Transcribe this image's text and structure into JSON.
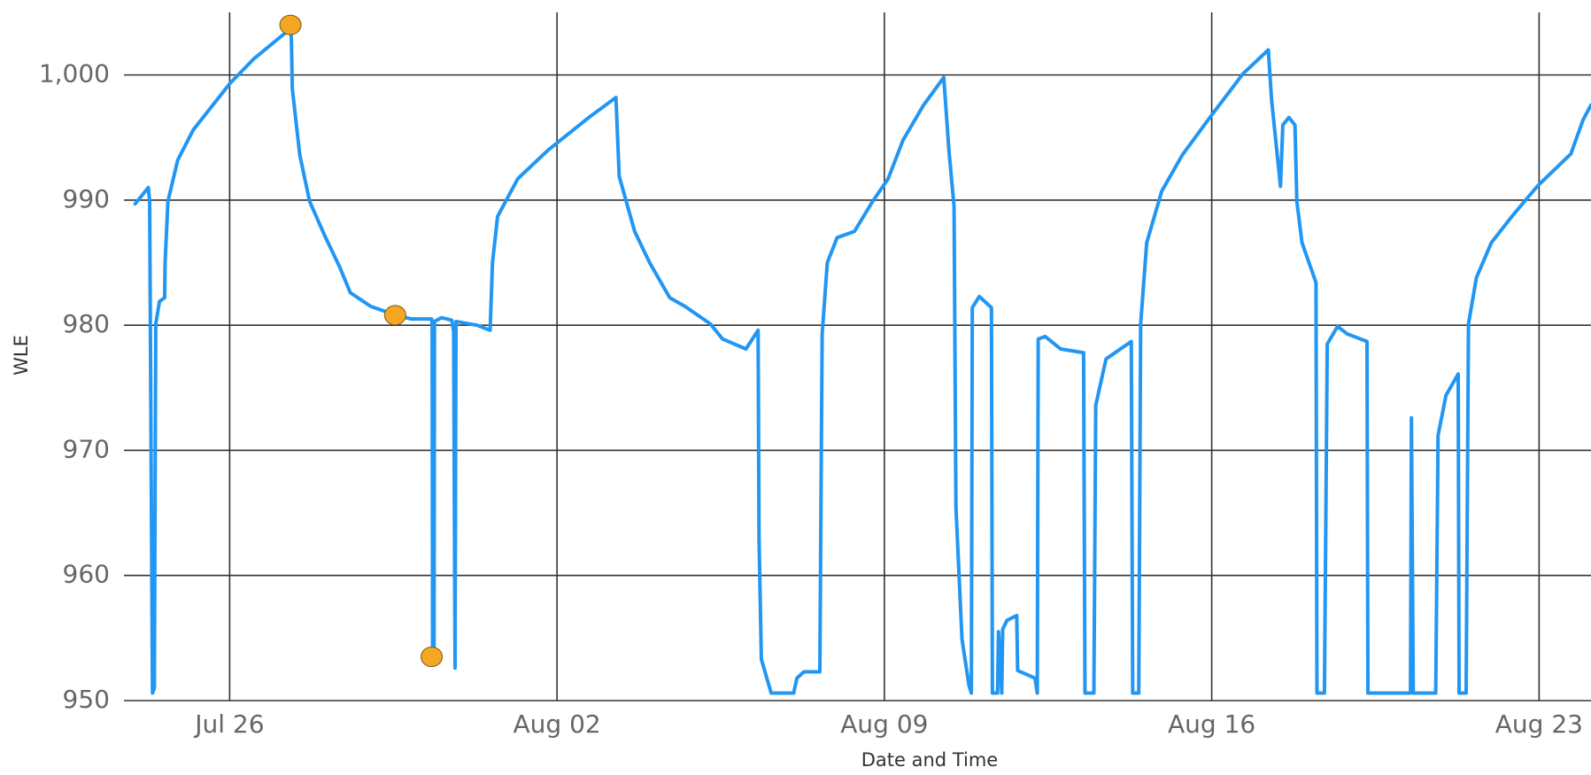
{
  "chart_data": {
    "type": "line",
    "x_label": "Date and Time",
    "y_label": "WLE",
    "xlim": [
      -2.26,
      29.11
    ],
    "ylim": [
      950,
      1005
    ],
    "xticks": [
      {
        "value": 0,
        "label": "Jul 26"
      },
      {
        "value": 7,
        "label": "Aug 02"
      },
      {
        "value": 14,
        "label": "Aug 09"
      },
      {
        "value": 21,
        "label": "Aug 16"
      },
      {
        "value": 28,
        "label": "Aug 23"
      }
    ],
    "yticks": [
      950,
      960,
      970,
      980,
      990,
      {
        "value": 1000,
        "label": "1,000"
      }
    ],
    "grid": true,
    "x": [
      -2.02,
      -1.74,
      -1.71,
      -1.68,
      -1.65,
      -1.61,
      -1.58,
      -1.5,
      -1.39,
      -1.38,
      -1.32,
      -1.11,
      -0.78,
      0,
      0.52,
      1.3,
      1.32,
      1.34,
      1.5,
      1.71,
      2.04,
      2.36,
      2.58,
      3.02,
      3.56,
      3.88,
      4.32,
      4.33,
      4.34,
      4.37,
      4.38,
      4.53,
      4.75,
      4.79,
      4.82,
      4.84,
      5.29,
      5.57,
      5.62,
      5.73,
      6.16,
      6.81,
      7.68,
      8.26,
      8.33,
      8.66,
      8.98,
      9.41,
      9.74,
      10.28,
      10.54,
      11.04,
      11.3,
      11.32,
      11.37,
      11.58,
      12.06,
      12.13,
      12.28,
      12.62,
      12.67,
      12.78,
      12.99,
      13.36,
      13.75,
      14.08,
      14.4,
      14.84,
      15.27,
      15.38,
      15.49,
      15.53,
      15.66,
      15.81,
      15.86,
      15.88,
      16.03,
      16.29,
      16.31,
      16.42,
      16.44,
      16.51,
      16.53,
      16.62,
      16.83,
      16.85,
      17.22,
      17.27,
      17.29,
      17.44,
      17.77,
      18.26,
      18.29,
      18.48,
      18.52,
      18.74,
      19.28,
      19.31,
      19.44,
      19.48,
      19.61,
      19.93,
      20.37,
      21,
      21.67,
      22.21,
      22.28,
      22.47,
      22.52,
      22.65,
      22.78,
      22.82,
      22.93,
      23.23,
      23.25,
      23.41,
      23.47,
      23.69,
      23.9,
      24.32,
      24.34,
      25.25,
      25.27,
      25.31,
      25.79,
      25.84,
      26.01,
      26.27,
      26.29,
      26.44,
      26.49,
      26.66,
      26.98,
      27.42,
      27.96,
      28.68,
      28.94,
      29.11
    ],
    "series": [
      {
        "color": "#2196f3",
        "values": [
          989.7,
          991,
          989.9,
          970,
          950.6,
          951,
          980.1,
          981.9,
          982.2,
          985,
          989.9,
          993.2,
          995.6,
          999.3,
          1001.3,
          1003.7,
          1002.9,
          998.9,
          993.6,
          989.9,
          987.1,
          984.6,
          982.6,
          981.5,
          980.8,
          980.5,
          980.5,
          980,
          953.3,
          953.3,
          980.3,
          980.6,
          980.4,
          979.5,
          952.6,
          980.3,
          980,
          979.6,
          985,
          988.7,
          991.7,
          994,
          996.6,
          998.2,
          991.9,
          987.5,
          985,
          982.2,
          981.5,
          980.1,
          978.9,
          978.1,
          979.6,
          963,
          953.3,
          950.6,
          950.6,
          951.8,
          952.3,
          952.3,
          979.3,
          985,
          987,
          987.5,
          989.9,
          991.7,
          994.8,
          997.6,
          999.8,
          994,
          989.5,
          965.5,
          954.9,
          951.2,
          950.6,
          981.4,
          982.3,
          981.4,
          950.6,
          950.6,
          955.5,
          950.6,
          955.7,
          956.4,
          956.8,
          952.4,
          951.8,
          950.6,
          978.9,
          979.1,
          978.1,
          977.8,
          950.6,
          950.6,
          973.6,
          977.3,
          978.7,
          950.6,
          950.6,
          980.1,
          986.6,
          990.7,
          993.6,
          996.8,
          1000.1,
          1002,
          998,
          991.1,
          996,
          996.6,
          996,
          989.9,
          986.6,
          983.4,
          950.6,
          950.6,
          978.5,
          979.9,
          979.3,
          978.7,
          950.6,
          950.6,
          972.6,
          950.6,
          950.6,
          971.2,
          974.4,
          976.1,
          950.6,
          950.6,
          980.1,
          983.8,
          986.6,
          988.7,
          991.1,
          993.7,
          996.4,
          997.6
        ]
      }
    ],
    "points": {
      "color": "#f5a623",
      "x": [
        1.3,
        3.54,
        4.32
      ],
      "y": [
        1004,
        980.8,
        953.5
      ]
    }
  }
}
